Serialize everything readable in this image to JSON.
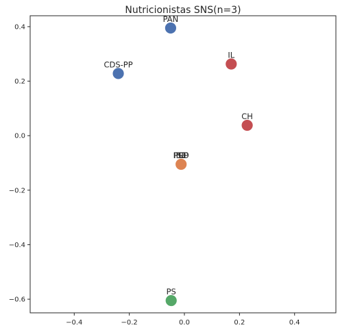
{
  "chart_data": {
    "type": "scatter",
    "title": "Nutricionistas SNS(n=3)",
    "xlabel": "",
    "ylabel": "",
    "xlim": [
      -0.56,
      0.55
    ],
    "ylim": [
      -0.65,
      0.44
    ],
    "xticks": [
      -0.4,
      -0.2,
      0.0,
      0.2,
      0.4
    ],
    "xtick_labels": [
      "−0.4",
      "−0.2",
      "0.0",
      "0.2",
      "0.4"
    ],
    "yticks": [
      -0.6,
      -0.4,
      -0.2,
      0.0,
      0.2,
      0.4
    ],
    "ytick_labels": [
      "−0.6",
      "−0.4",
      "−0.2",
      "0.0",
      "0.2",
      "0.4"
    ],
    "grid": false,
    "points": [
      {
        "label": "PAN",
        "x": -0.05,
        "y": 0.395,
        "color": "#4c72b0"
      },
      {
        "label": "CDS-PP",
        "x": -0.24,
        "y": 0.228,
        "color": "#4c72b0"
      },
      {
        "label": "IL",
        "x": 0.17,
        "y": 0.263,
        "color": "#c44e52"
      },
      {
        "label": "CH",
        "x": 0.228,
        "y": 0.038,
        "color": "#c44e52"
      },
      {
        "label": "BE",
        "x": -0.012,
        "y": -0.105,
        "color": "#dd8452"
      },
      {
        "label": "PCP",
        "x": -0.012,
        "y": -0.105,
        "color": "#dd8452"
      },
      {
        "label": "PSD",
        "x": -0.012,
        "y": -0.105,
        "color": "#dd8452"
      },
      {
        "label": "PS",
        "x": -0.048,
        "y": -0.605,
        "color": "#55a868"
      }
    ]
  }
}
